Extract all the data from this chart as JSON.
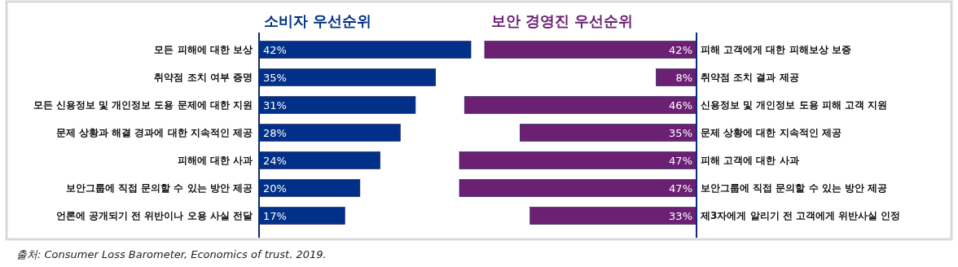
{
  "chart_data": [
    {
      "type": "bar",
      "orientation": "horizontal",
      "title": "소비자 우선순위",
      "color": "#003087",
      "categories": [
        "모든 피해에 대한 보상",
        "취약점 조치 여부 증명",
        "모든 신용정보 및 개인정보 도용 문제에 대한 지원",
        "문제 상황과 해결 경과에 대한 지속적인 제공",
        "피해에 대한 사과",
        "보안그룹에 직접 문의할 수 있는 방안 제공",
        "언론에 공개되기 전 위반이나 오용 사실 전달"
      ],
      "values": [
        42,
        35,
        31,
        28,
        24,
        20,
        17
      ],
      "value_labels": [
        "42%",
        "35%",
        "31%",
        "28%",
        "24%",
        "20%",
        "17%"
      ],
      "annotations": [
        "출처: Consumer Loss Barometer, Economics of trust. 2019."
      ]
    },
    {
      "type": "bar",
      "orientation": "horizontal",
      "title": "보안 경영진 우선순위",
      "color": "#6b2074",
      "categories": [
        "피해 고객에게 대한 피해보상 보증",
        "취약점 조치 결과 제공",
        "신용정보 및 개인정보 도용 피해 고객 지원",
        "문제 상황에 대한 지속적인 제공",
        "피해 고객에 대한 사과",
        "보안그룹에 직접 문의할 수 있는 방안 제공",
        "제3자에게 알리기 전 고객에게 위반사실 인정"
      ],
      "values": [
        42,
        8,
        46,
        35,
        47,
        47,
        33
      ],
      "value_labels": [
        "42%",
        "8%",
        "46%",
        "35%",
        "47%",
        "47%",
        "33%"
      ]
    }
  ]
}
